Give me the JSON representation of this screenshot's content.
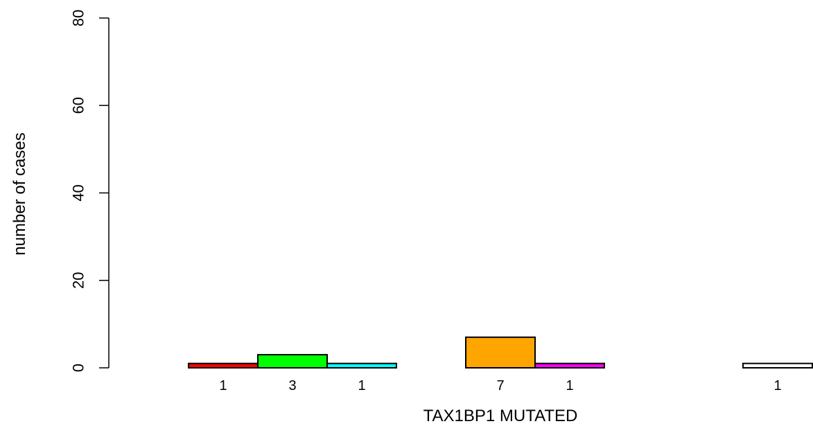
{
  "chart_data": {
    "type": "bar",
    "xlabel": "TAX1BP1 MUTATED",
    "ylabel": "number of cases",
    "ylim": [
      0,
      80
    ],
    "yticks": [
      0,
      20,
      40,
      60,
      80
    ],
    "grid": false,
    "bars": [
      {
        "value": 1,
        "label": "1",
        "color": "#FF0000"
      },
      {
        "value": 3,
        "label": "3",
        "color": "#00FF00"
      },
      {
        "value": 1,
        "label": "1",
        "color": "#00FFFF"
      },
      {
        "value": 0,
        "label": "",
        "color": "#0000FF"
      },
      {
        "value": 7,
        "label": "7",
        "color": "#FFA500"
      },
      {
        "value": 1,
        "label": "1",
        "color": "#FF00FF"
      },
      {
        "value": 0,
        "label": "",
        "color": "#FFFF00"
      },
      {
        "value": 0,
        "label": "",
        "color": "#AAAAAA"
      },
      {
        "value": 1,
        "label": "1",
        "color": "#FFFFFF"
      }
    ]
  }
}
